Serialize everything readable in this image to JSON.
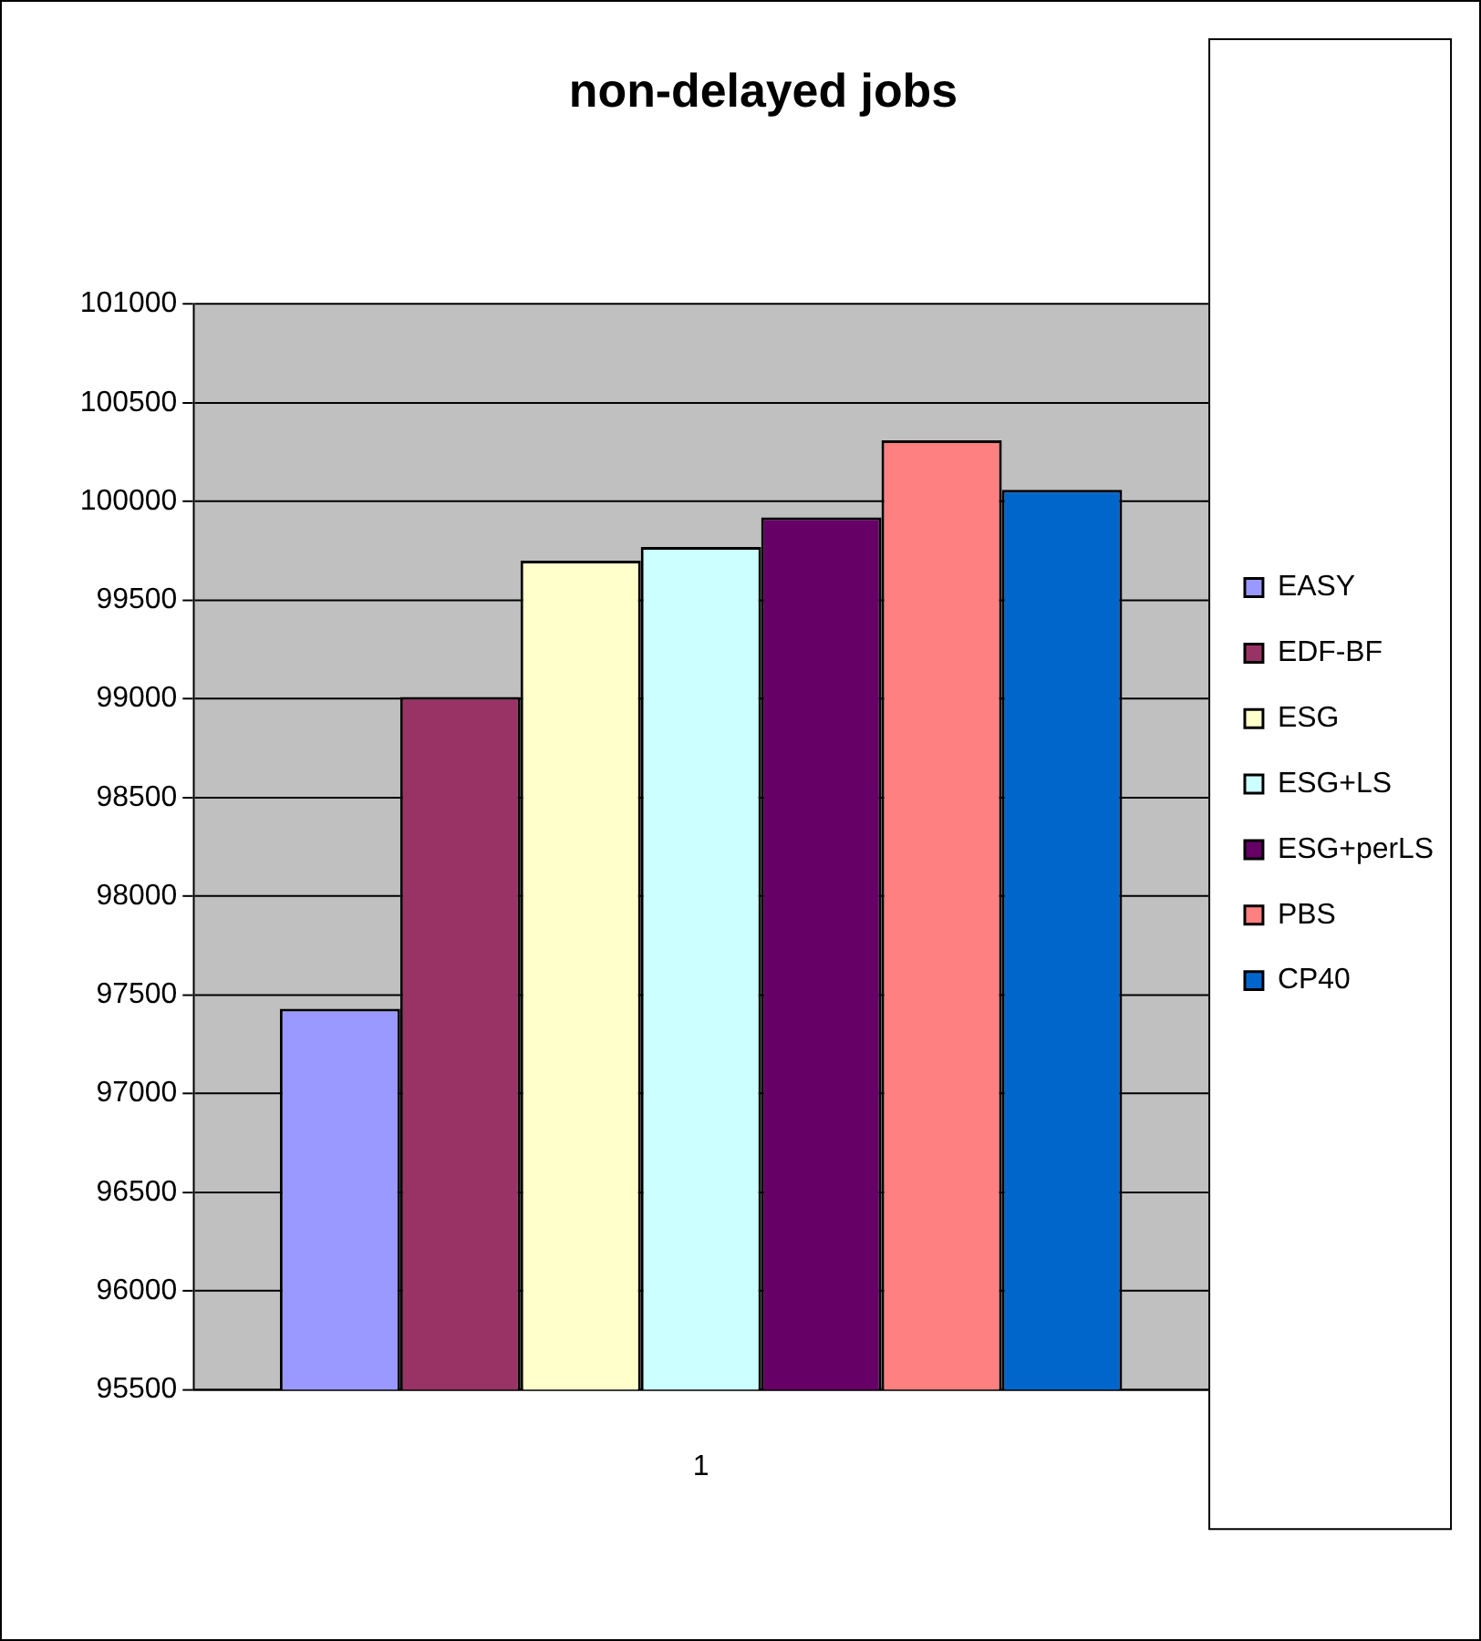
{
  "chart_data": {
    "type": "bar",
    "title": "non-delayed jobs",
    "categories": [
      "1"
    ],
    "series": [
      {
        "name": "EASY",
        "color": "#9999ff",
        "values": [
          97430
        ]
      },
      {
        "name": "EDF-BF",
        "color": "#993366",
        "values": [
          99010
        ]
      },
      {
        "name": "ESG",
        "color": "#ffffcc",
        "values": [
          99700
        ]
      },
      {
        "name": "ESG+LS",
        "color": "#ccffff",
        "values": [
          99770
        ]
      },
      {
        "name": "ESG+perLS",
        "color": "#660066",
        "values": [
          99920
        ]
      },
      {
        "name": "PBS",
        "color": "#ff8080",
        "values": [
          100310
        ]
      },
      {
        "name": "CP40",
        "color": "#0066cc",
        "values": [
          100060
        ]
      }
    ],
    "ylim": [
      95500,
      101000
    ],
    "yticks": [
      95500,
      96000,
      96500,
      97000,
      97500,
      98000,
      98500,
      99000,
      99500,
      100000,
      100500,
      101000
    ],
    "grid": "y",
    "legend": "right"
  }
}
